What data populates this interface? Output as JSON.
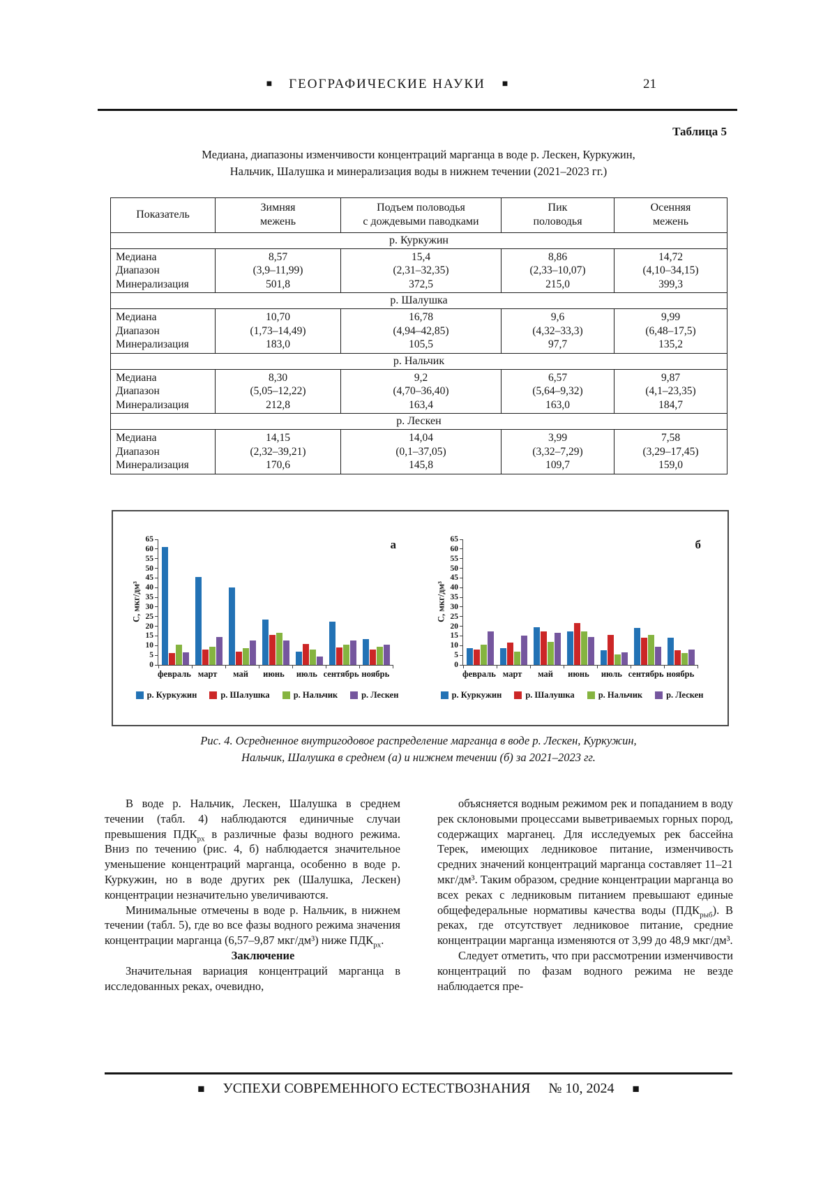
{
  "page": {
    "number": "21"
  },
  "header": {
    "marker": "■",
    "title": "ГЕОГРАФИЧЕСКИЕ НАУКИ"
  },
  "table": {
    "label": "Таблица 5",
    "caption": "Медиана, диапазоны изменчивости концентраций марганца в воде р. Лескен, Куркужин,\nНальчик, Шалушка и минерализация воды в нижнем течении (2021–2023 гг.)",
    "columns": [
      "Показатель",
      "Зимняя\nмежень",
      "Подъем половодья\nс дождевыми паводками",
      "Пик\nполоводья",
      "Осенняя\nмежень"
    ],
    "row_labels": [
      "Медиана",
      "Диапазон",
      "Минерализация"
    ],
    "sections": [
      {
        "name": "р. Куркужин",
        "cells": [
          [
            "8,57",
            "(3,9–11,99)",
            "501,8"
          ],
          [
            "15,4",
            "(2,31–32,35)",
            "372,5"
          ],
          [
            "8,86",
            "(2,33–10,07)",
            "215,0"
          ],
          [
            "14,72",
            "(4,10–34,15)",
            "399,3"
          ]
        ]
      },
      {
        "name": "р. Шалушка",
        "cells": [
          [
            "10,70",
            "(1,73–14,49)",
            "183,0"
          ],
          [
            "16,78",
            "(4,94–42,85)",
            "105,5"
          ],
          [
            "9,6",
            "(4,32–33,3)",
            "97,7"
          ],
          [
            "9,99",
            "(6,48–17,5)",
            "135,2"
          ]
        ]
      },
      {
        "name": "р. Нальчик",
        "cells": [
          [
            "8,30",
            "(5,05–12,22)",
            "212,8"
          ],
          [
            "9,2",
            "(4,70–36,40)",
            "163,4"
          ],
          [
            "6,57",
            "(5,64–9,32)",
            "163,0"
          ],
          [
            "9,87",
            "(4,1–23,35)",
            "184,7"
          ]
        ]
      },
      {
        "name": "р. Лескен",
        "cells": [
          [
            "14,15",
            "(2,32–39,21)",
            "170,6"
          ],
          [
            "14,04",
            "(0,1–37,05)",
            "145,8"
          ],
          [
            "3,99",
            "(3,32–7,29)",
            "109,7"
          ],
          [
            "7,58",
            "(3,29–17,45)",
            "159,0"
          ]
        ]
      }
    ]
  },
  "chart_data": [
    {
      "type": "bar",
      "panel": "а",
      "ylabel": "С, мкг/дм³",
      "ylim": [
        0,
        65
      ],
      "ytick_step": 5,
      "grid": false,
      "legend_position": "bottom",
      "categories": [
        "февраль",
        "март",
        "май",
        "июнь",
        "июль",
        "сентябрь",
        "ноябрь"
      ],
      "series": [
        {
          "name": "р. Куркужин",
          "color": "#2272B5",
          "values": [
            61,
            45.5,
            40,
            23.5,
            7,
            22.5,
            13.5
          ]
        },
        {
          "name": "р. Шалушка",
          "color": "#CC2626",
          "values": [
            6,
            8,
            7,
            15.5,
            11,
            9,
            8
          ]
        },
        {
          "name": "р. Нальчик",
          "color": "#85B440",
          "values": [
            10.5,
            9.5,
            8.5,
            16.5,
            8,
            10.5,
            9.5
          ]
        },
        {
          "name": "р. Лескен",
          "color": "#75569E",
          "values": [
            6.5,
            14.5,
            12.5,
            12.5,
            4.5,
            12.5,
            10.5
          ]
        }
      ]
    },
    {
      "type": "bar",
      "panel": "б",
      "ylabel": "С, мкг/дм³",
      "ylim": [
        0,
        65
      ],
      "ytick_step": 5,
      "grid": false,
      "legend_position": "bottom",
      "categories": [
        "февраль",
        "март",
        "май",
        "июнь",
        "июль",
        "сентябрь",
        "ноябрь"
      ],
      "series": [
        {
          "name": "р. Куркужин",
          "color": "#2272B5",
          "values": [
            8.5,
            8.5,
            19.5,
            17.5,
            7.5,
            19,
            14
          ]
        },
        {
          "name": "р. Шалушка",
          "color": "#CC2626",
          "values": [
            8,
            11.5,
            17.5,
            21.5,
            15.5,
            14,
            7.5
          ]
        },
        {
          "name": "р. Нальчик",
          "color": "#85B440",
          "values": [
            10.5,
            7,
            12,
            17.5,
            5.5,
            15.5,
            6
          ]
        },
        {
          "name": "р. Лескен",
          "color": "#75569E",
          "values": [
            17.5,
            15,
            16.5,
            14.5,
            6.5,
            9.5,
            8
          ]
        }
      ]
    }
  ],
  "figure": {
    "caption_line1": "Рис. 4. Осредненное внутригодовое распределение марганца в воде р. Лескен, Куркужин,",
    "caption_line2": "Нальчик, Шалушка в среднем (а) и нижнем течении (б) за 2021–2023 гг."
  },
  "body": {
    "left": {
      "p1": [
        {
          "t": "В воде р. Нальчик, Лескен, Шалушка в среднем течении (табл. 4) наблюдаются единичные случаи превышения ПДК"
        },
        {
          "t": "рх",
          "sub": true
        },
        {
          "t": " в различные фазы водного режима. Вниз по течению (рис. 4, б) наблюдается значительное уменьшение концентраций марганца, особенно в воде р. Куркужин, но в воде других рек (Шалушка, Лескен) концентрации незначительно увеличиваются."
        }
      ],
      "p2": [
        {
          "t": "Минимальные отмечены в воде р. Нальчик, в нижнем течении (табл. 5), где во все фазы водного режима значения концентрации марганца (6,57–9,87 мкг/дм³) ниже ПДК"
        },
        {
          "t": "рх",
          "sub": true
        },
        {
          "t": "."
        }
      ],
      "heading": "Заключение",
      "p3": [
        {
          "t": "Значительная вариация концентраций марганца в исследованных реках, очевидно,"
        }
      ]
    },
    "right": {
      "p1": [
        {
          "t": "объясняется водным режимом рек и попаданием в воду рек склоновыми процессами выветриваемых горных пород, содержащих марганец. Для исследуемых рек бассейна Терек, имеющих ледниковое питание, изменчивость средних значений концентраций марганца составляет 11–21 мкг/дм³. Таким образом, средние концентрации марганца во всех реках с ледниковым питанием превышают единые общефедеральные нормативы качества воды (ПДК"
        },
        {
          "t": "рыб",
          "sub": true
        },
        {
          "t": "). В реках, где отсутствует ледниковое питание, средние концентрации марганца изменяются от 3,99 до 48,9 мкг/дм³."
        }
      ],
      "p2": [
        {
          "t": "Следует отметить, что при рассмотрении изменчивости концентраций по фазам водного режима не везде наблюдается пре-"
        }
      ]
    }
  },
  "footer": {
    "marker": "■",
    "journal": "УСПЕХИ СОВРЕМЕННОГО ЕСТЕСТВОЗНАНИЯ",
    "issue": "№ 10, 2024"
  }
}
